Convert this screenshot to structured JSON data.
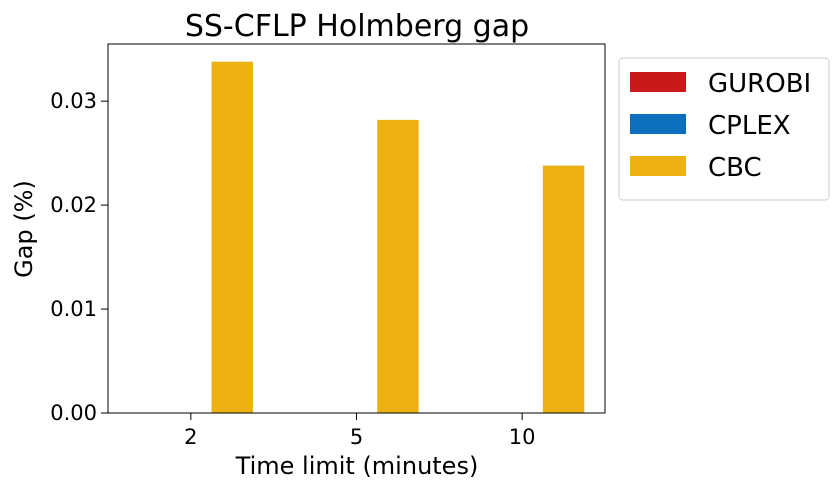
{
  "chart_data": {
    "type": "bar",
    "title": "SS-CFLP Holmberg gap",
    "xlabel": "Time limit (minutes)",
    "ylabel": "Gap (%)",
    "categories": [
      "2",
      "5",
      "10"
    ],
    "ylim": [
      0,
      0.0355
    ],
    "yticks": [
      0.0,
      0.01,
      0.02,
      0.03
    ],
    "ytick_labels": [
      "0.00",
      "0.01",
      "0.02",
      "0.03"
    ],
    "grid": false,
    "legend_position": "outside-right-top",
    "series": [
      {
        "name": "GUROBI",
        "color": "#c8191b",
        "values": [
          0,
          0,
          0
        ]
      },
      {
        "name": "CPLEX",
        "color": "#0c6ebd",
        "values": [
          0,
          0,
          0
        ]
      },
      {
        "name": "CBC",
        "color": "#edb113",
        "values": [
          0.0338,
          0.0282,
          0.0238
        ]
      }
    ]
  }
}
